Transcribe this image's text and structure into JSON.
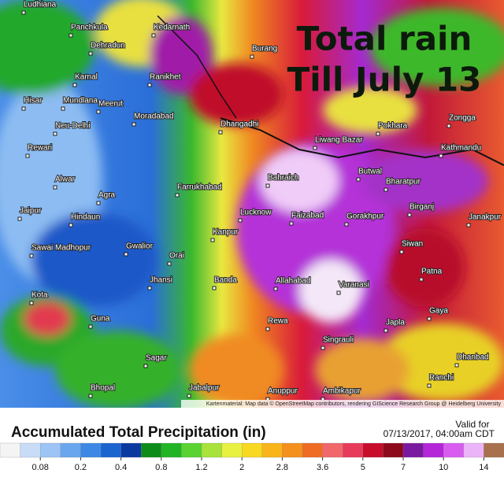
{
  "map": {
    "title_line1": "Total rain",
    "title_line2": "Till July 13",
    "attribution": "Kartenmaterial: Map data © OpenStreetMap contributors, rendering GIScience Research Group @ Heidelberg University",
    "cities": [
      "Ludhiana",
      "Panchkula",
      "Dehradun",
      "Kedarnath",
      "Burang",
      "Karnal",
      "Ranikhet",
      "Hisar",
      "Mundlana",
      "Meerut",
      "Moradabad",
      "Neu-Delhi",
      "Rewari",
      "Dhangadhi",
      "Liwang Bazar",
      "Pokhara",
      "Kathmandu",
      "Zongga",
      "Alwar",
      "Farrukhabad",
      "Bahraich",
      "Butwal",
      "Bharatpur",
      "Agra",
      "Jaipur",
      "Hindaun",
      "Lucknow",
      "Faizabad",
      "Gorakhpur",
      "Birganj",
      "Janakpur",
      "Kanpur",
      "Sawai Madhopur",
      "Gwalior",
      "Orai",
      "Siwan",
      "Patna",
      "Jhansi",
      "Banda",
      "Allahabad",
      "Varanasi",
      "Kota",
      "Guna",
      "Rewa",
      "Singrauli",
      "Japla",
      "Gaya",
      "Sagar",
      "Bhopal",
      "Dhanbad",
      "Jabalpur",
      "Anuppur",
      "Ambikapur",
      "Ranchi"
    ]
  },
  "legend": {
    "title": "Accumulated Total Precipitation (in)",
    "valid_label": "Valid for",
    "valid_time": "07/13/2017, 04:00am CDT",
    "ticks": [
      0.08,
      0.2,
      0.4,
      0.8,
      1.2,
      2,
      2.8,
      3.6,
      5,
      7,
      10,
      14
    ],
    "colors": [
      "#f4f4f4",
      "#c8dcf8",
      "#9cc4f4",
      "#6aa6ee",
      "#3c88e4",
      "#1a64d0",
      "#0a3aa0",
      "#0e8c1a",
      "#22b424",
      "#5ad232",
      "#a8e23a",
      "#e8f040",
      "#f8d820",
      "#f8b418",
      "#f4901c",
      "#ee6c24",
      "#f0686a",
      "#e83a5a",
      "#c80c2c",
      "#8c0a1c",
      "#7a1aa0",
      "#b426d8",
      "#d85cf0",
      "#ecb4f8",
      "#a8704c"
    ]
  }
}
